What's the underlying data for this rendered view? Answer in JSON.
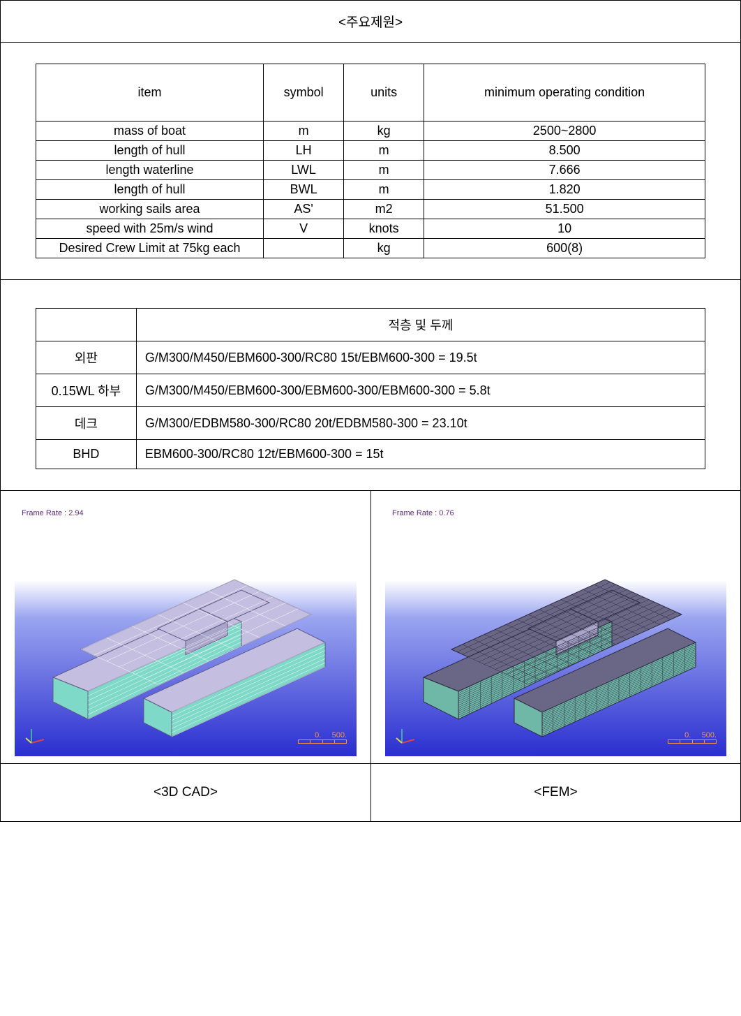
{
  "title": "<주요제원>",
  "spec_table": {
    "headers": {
      "item": "item",
      "symbol": "symbol",
      "units": "units",
      "cond": "minimum operating condition"
    },
    "rows": [
      {
        "item": "mass of boat",
        "symbol": "m",
        "units": "kg",
        "cond": "2500~2800"
      },
      {
        "item": "length of hull",
        "symbol": "LH",
        "units": "m",
        "cond": "8.500"
      },
      {
        "item": "length waterline",
        "symbol": "LWL",
        "units": "m",
        "cond": "7.666"
      },
      {
        "item": "length of hull",
        "symbol": "BWL",
        "units": "m",
        "cond": "1.820"
      },
      {
        "item": "working sails area",
        "symbol": "AS'",
        "units": "m2",
        "cond": "51.500"
      },
      {
        "item": "speed with 25m/s wind",
        "symbol": "V",
        "units": "knots",
        "cond": "10"
      },
      {
        "item": "Desired Crew Limit at 75kg each",
        "symbol": "",
        "units": "kg",
        "cond": "600(8)"
      }
    ]
  },
  "layup_table": {
    "header": "적층 및 두께",
    "rows": [
      {
        "label": "외판",
        "value": "G/M300/M450/EBM600-300/RC80 15t/EBM600-300 = 19.5t"
      },
      {
        "label": "0.15WL 하부",
        "value": "G/M300/M450/EBM600-300/EBM600-300/EBM600-300 =  5.8t"
      },
      {
        "label": "데크",
        "value": "G/M300/EDBM580-300/RC80 20t/EDBM580-300 = 23.10t"
      },
      {
        "label": "BHD",
        "value": "EBM600-300/RC80 12t/EBM600-300 = 15t"
      }
    ]
  },
  "renders": {
    "left": {
      "frame_rate": "Frame Rate : 2.94",
      "scale_min": "0.",
      "scale_max": "500.",
      "hull_fill": "#c4bfe0",
      "hull_side": "#7fd9c8",
      "hull_edge": "#5f5a85",
      "mesh": false
    },
    "right": {
      "frame_rate": "Frame Rate : 0.76",
      "scale_min": "0.",
      "scale_max": "500.",
      "hull_fill": "#6a6685",
      "hull_side": "#6fb8a8",
      "hull_edge": "#2d2a40",
      "mesh": true
    }
  },
  "captions": {
    "left": "<3D CAD>",
    "right": "<FEM>"
  }
}
